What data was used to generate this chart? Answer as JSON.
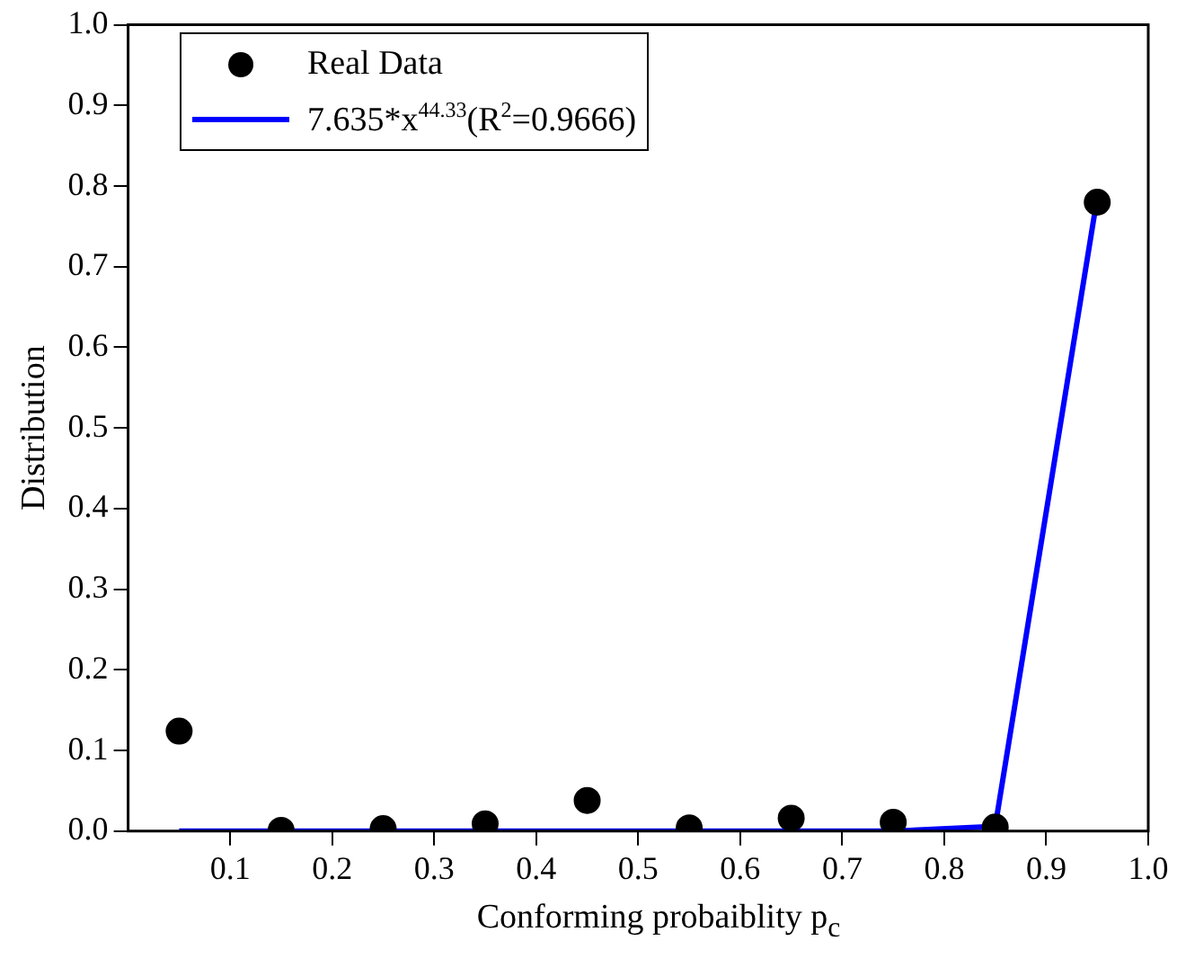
{
  "chart_data": {
    "type": "scatter",
    "xlabel": "Conforming probaiblity p$_{c}$",
    "ylabel": "Distribution",
    "x": [
      0.05,
      0.15,
      0.25,
      0.35,
      0.45,
      0.55,
      0.65,
      0.75,
      0.85,
      0.95
    ],
    "series": [
      {
        "name": "Real Data",
        "type": "scatter",
        "color": "#000000",
        "marker": "circle",
        "values": [
          0.124,
          0.001,
          0.003,
          0.009,
          0.038,
          0.004,
          0.016,
          0.011,
          0.005,
          0.78
        ]
      },
      {
        "name": "7.635*x$^{44.33}$(R$^{2}$=0.9666)",
        "type": "line",
        "color": "#0000ff",
        "marker": "none",
        "line_style": "solid",
        "values": [
          0,
          0,
          0,
          0,
          0,
          0,
          0,
          0,
          0.006,
          0.786
        ]
      }
    ],
    "xlim": [
      0,
      1
    ],
    "xticks": [
      0.1,
      0.2,
      0.3,
      0.4,
      0.5,
      0.6,
      0.7,
      0.8,
      0.9,
      {
        "value": 1,
        "label": "1.0"
      }
    ],
    "ylim": [
      0,
      1
    ],
    "yticks": [
      {
        "value": 0,
        "label": "0.0"
      },
      0.1,
      0.2,
      0.3,
      0.4,
      0.5,
      0.6,
      0.7,
      0.8,
      0.9,
      {
        "value": 1,
        "label": "1.0"
      }
    ],
    "grid": false,
    "legend": "top left"
  }
}
